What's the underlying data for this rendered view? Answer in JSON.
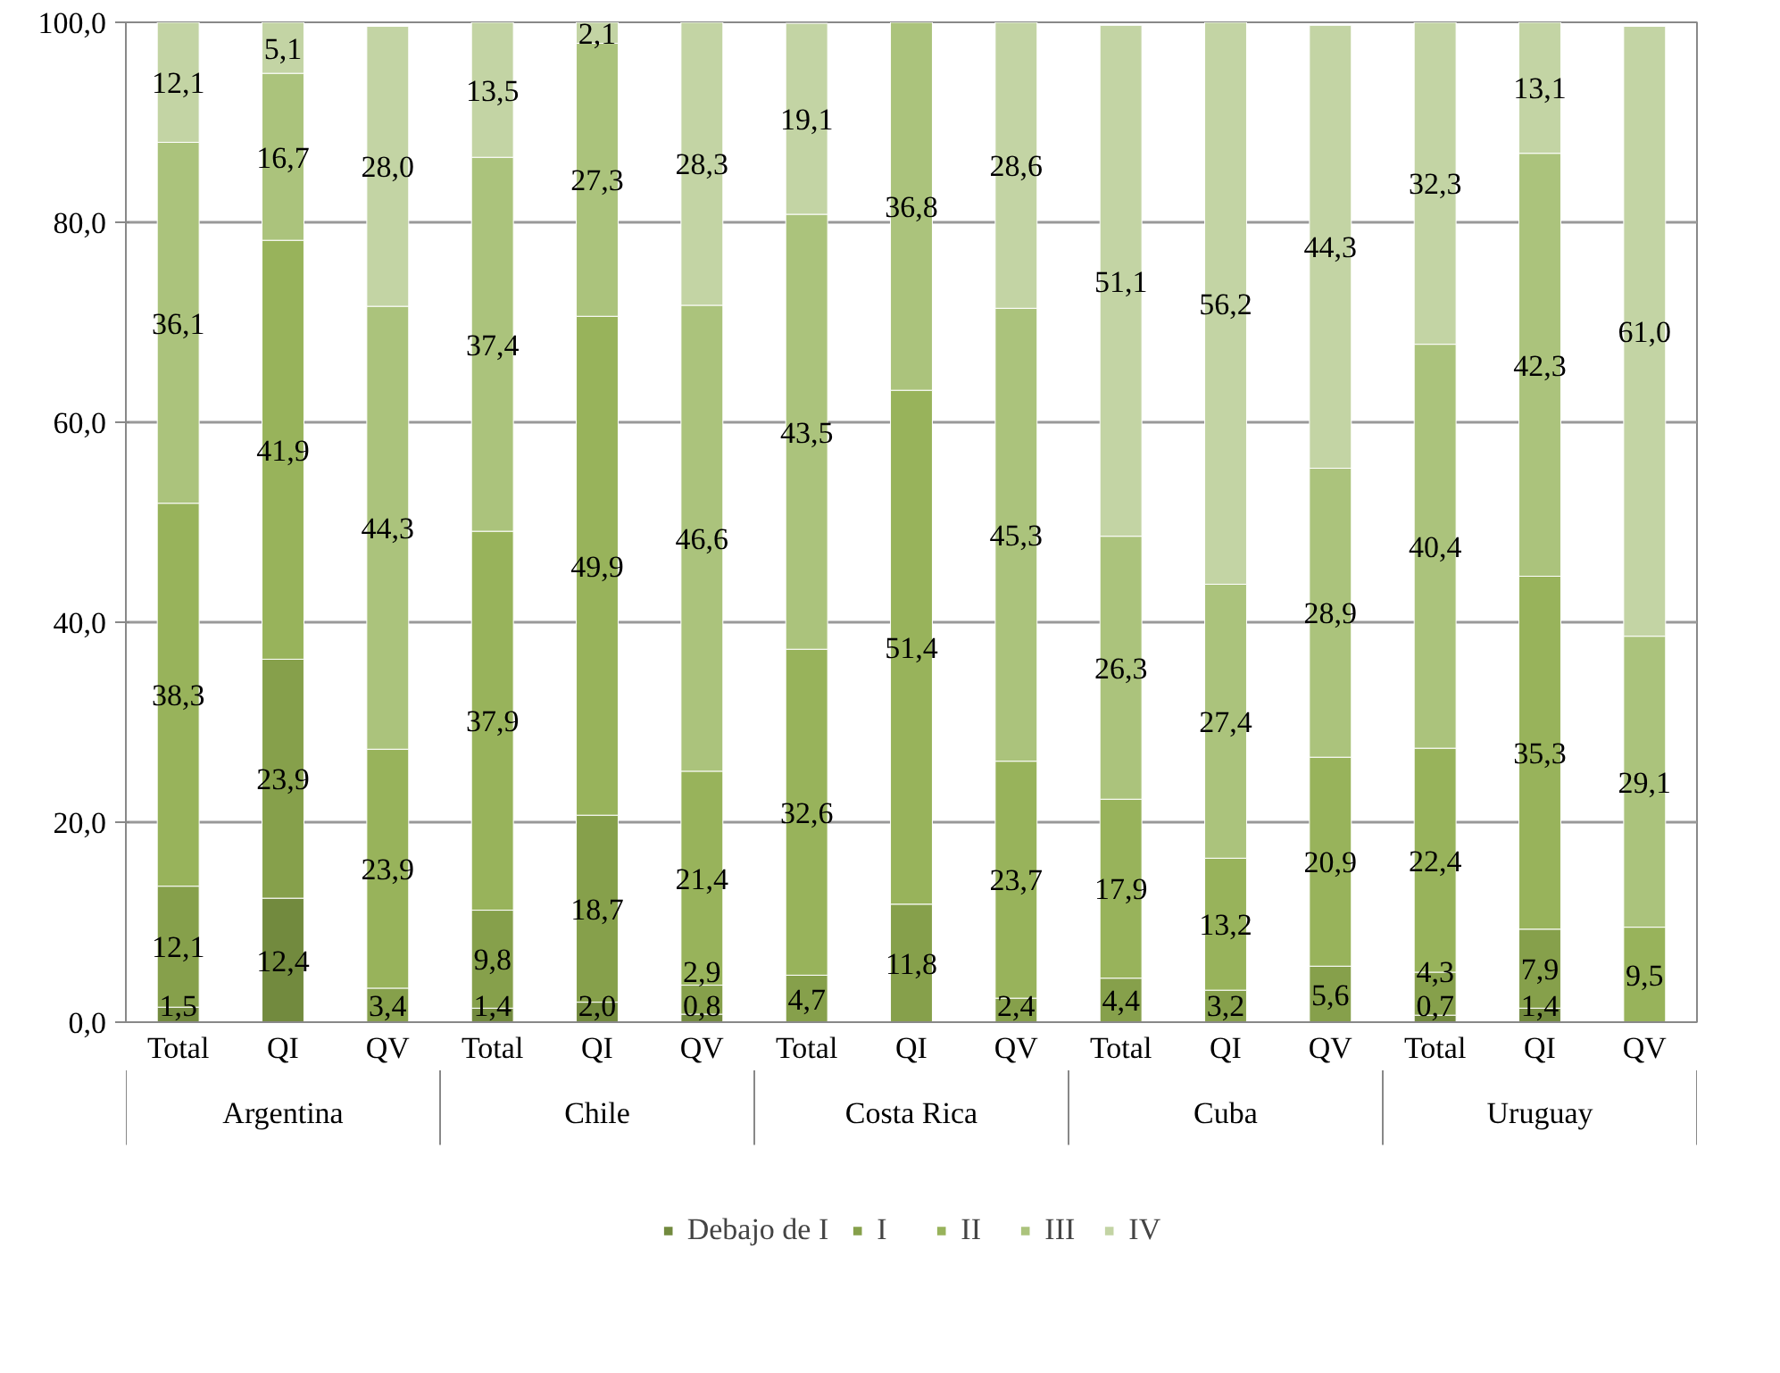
{
  "chart_data": {
    "type": "bar",
    "stacked": true,
    "categories": [
      "Total",
      "QI",
      "QV",
      "Total",
      "QI",
      "QV",
      "Total",
      "QI",
      "QV",
      "Total",
      "QI",
      "QV",
      "Total",
      "QI",
      "QV"
    ],
    "annotations": [
      "Argentina",
      "Chile",
      "Costa Rica",
      "Cuba",
      "Uruguay"
    ],
    "series": [
      {
        "name": "Debajo de I",
        "color": "#728a3e",
        "values": [
          1.5,
          12.4,
          null,
          1.4,
          2.0,
          0.8,
          null,
          null,
          null,
          null,
          null,
          null,
          0.7,
          1.4,
          null
        ],
        "value_labels": [
          "1,5",
          "12,4",
          null,
          "1,4",
          "2,0",
          "0,8",
          null,
          null,
          null,
          null,
          null,
          null,
          "0,7",
          "1,4",
          null
        ]
      },
      {
        "name": "I",
        "color": "#86a04b",
        "values": [
          12.1,
          23.9,
          3.4,
          9.8,
          18.7,
          2.9,
          4.7,
          11.8,
          2.4,
          4.4,
          3.2,
          5.6,
          4.3,
          7.9,
          null
        ],
        "value_labels": [
          "12,1",
          "23,9",
          "3,4",
          "9,8",
          "18,7",
          "2,9",
          "4,7",
          "11,8",
          "2,4",
          "4,4",
          "3,2",
          "5,6",
          "4,3",
          "7,9",
          null
        ]
      },
      {
        "name": "II",
        "color": "#98b35b",
        "values": [
          38.3,
          41.9,
          23.9,
          37.9,
          49.9,
          21.4,
          32.6,
          51.4,
          23.7,
          17.9,
          13.2,
          20.9,
          22.4,
          35.3,
          9.5
        ],
        "value_labels": [
          "38,3",
          "41,9",
          "23,9",
          "37,9",
          "49,9",
          "21,4",
          "32,6",
          "51,4",
          "23,7",
          "17,9",
          "13,2",
          "20,9",
          "22,4",
          "35,3",
          "9,5"
        ]
      },
      {
        "name": "III",
        "color": "#abc37c",
        "values": [
          36.1,
          16.7,
          44.3,
          37.4,
          27.3,
          46.6,
          43.5,
          36.8,
          45.3,
          26.3,
          27.4,
          28.9,
          40.4,
          42.3,
          29.1
        ],
        "value_labels": [
          "36,1",
          "16,7",
          "44,3",
          "37,4",
          "27,3",
          "46,6",
          "43,5",
          "36,8",
          "45,3",
          "26,3",
          "27,4",
          "28,9",
          "40,4",
          "42,3",
          "29,1"
        ]
      },
      {
        "name": "IV",
        "color": "#c3d4a4",
        "values": [
          12.1,
          5.1,
          28.0,
          13.5,
          2.1,
          28.3,
          19.1,
          null,
          28.6,
          51.1,
          56.2,
          44.3,
          32.3,
          13.1,
          61.0
        ],
        "value_labels": [
          "12,1",
          "5,1",
          "28,0",
          "13,5",
          "2,1",
          "28,3",
          "19,1",
          null,
          "28,6",
          "51,1",
          "56,2",
          "44,3",
          "32,3",
          "13,1",
          "61,0"
        ]
      }
    ],
    "ylim": [
      0,
      100
    ],
    "yticks": [
      {
        "value": 0,
        "label": "0,0"
      },
      {
        "value": 20,
        "label": "20,0"
      },
      {
        "value": 40,
        "label": "40,0"
      },
      {
        "value": 60,
        "label": "60,0"
      },
      {
        "value": 80,
        "label": "80,0"
      },
      {
        "value": 100,
        "label": "100,0"
      }
    ],
    "grid": "y",
    "legend": "bottom"
  }
}
